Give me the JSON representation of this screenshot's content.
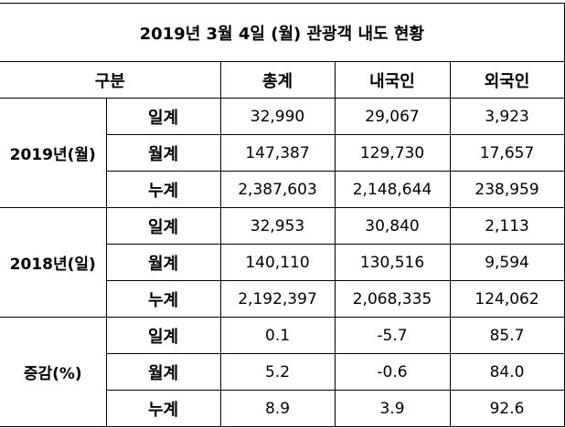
{
  "title": "2019년 3월 4일 (월) 관광객 내도 현황",
  "header": {
    "category": "구분",
    "columns": [
      "총계",
      "내국인",
      "외국인"
    ]
  },
  "groups": [
    {
      "label": "2019년(월)",
      "rows": [
        {
          "label": "일계",
          "values": [
            "32,990",
            "29,067",
            "3,923"
          ]
        },
        {
          "label": "월계",
          "values": [
            "147,387",
            "129,730",
            "17,657"
          ]
        },
        {
          "label": "누계",
          "values": [
            "2,387,603",
            "2,148,644",
            "238,959"
          ]
        }
      ]
    },
    {
      "label": "2018년(일)",
      "rows": [
        {
          "label": "일계",
          "values": [
            "32,953",
            "30,840",
            "2,113"
          ]
        },
        {
          "label": "월계",
          "values": [
            "140,110",
            "130,516",
            "9,594"
          ]
        },
        {
          "label": "누계",
          "values": [
            "2,192,397",
            "2,068,335",
            "124,062"
          ]
        }
      ]
    },
    {
      "label": "증감(%)",
      "rows": [
        {
          "label": "일계",
          "values": [
            "0.1",
            "-5.7",
            "85.7"
          ]
        },
        {
          "label": "월계",
          "values": [
            "5.2",
            "-0.6",
            "84.0"
          ]
        },
        {
          "label": "누계",
          "values": [
            "8.9",
            "3.9",
            "92.6"
          ]
        }
      ]
    }
  ]
}
